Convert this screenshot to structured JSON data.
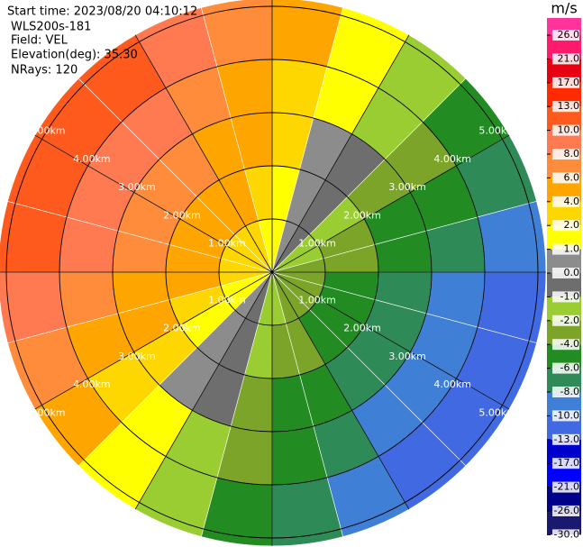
{
  "chart_data": {
    "type": "ppi",
    "header": [
      "Start time: 2023/08/20 04:10:12",
      "WLS200s-181",
      "Field: VEL",
      "Elevation(deg): 35.30",
      "NRays: 120"
    ],
    "azimuths": [
      7.5,
      22.5,
      37.5,
      52.5,
      67.5,
      82.5,
      97.5,
      112.5,
      127.5,
      142.5,
      157.5,
      172.5,
      187.5,
      202.5,
      217.5,
      232.5,
      247.5,
      262.5,
      277.5,
      292.5,
      307.5,
      322.5,
      337.5,
      352.5
    ],
    "range_bins_km": [
      0,
      1,
      2,
      3,
      4,
      5.15
    ],
    "values": [
      [
        1.1,
        1.9,
        2.7,
        3.4,
        4.2
      ],
      [
        0.4,
        0.7,
        0.9,
        1.2,
        1.4
      ],
      [
        -0.4,
        -0.7,
        -0.9,
        -1.2,
        -1.4
      ],
      [
        -1.1,
        -1.9,
        -2.7,
        -3.4,
        -4.2
      ],
      [
        -1.8,
        -3.0,
        -4.3,
        -5.5,
        -6.7
      ],
      [
        -2.4,
        -4.0,
        -5.6,
        -7.1,
        -8.7
      ],
      [
        -2.8,
        -4.6,
        -6.5,
        -8.3,
        -10.2
      ],
      [
        -3.0,
        -5.0,
        -6.9,
        -8.9,
        -10.9
      ],
      [
        -3.0,
        -5.0,
        -6.9,
        -8.9,
        -10.9
      ],
      [
        -2.8,
        -4.6,
        -6.5,
        -8.3,
        -10.2
      ],
      [
        -2.4,
        -4.0,
        -5.6,
        -7.1,
        -8.7
      ],
      [
        -1.8,
        -3.0,
        -4.3,
        -5.5,
        -6.7
      ],
      [
        -1.1,
        -1.9,
        -2.7,
        -3.4,
        -4.2
      ],
      [
        -0.4,
        -0.7,
        -0.9,
        -1.2,
        -1.4
      ],
      [
        0.4,
        0.7,
        0.9,
        1.2,
        1.4
      ],
      [
        1.1,
        1.9,
        2.7,
        3.4,
        4.2
      ],
      [
        1.8,
        3.0,
        4.3,
        5.5,
        6.7
      ],
      [
        2.4,
        4.0,
        5.6,
        7.1,
        8.7
      ],
      [
        2.8,
        4.6,
        6.5,
        8.3,
        10.2
      ],
      [
        3.0,
        5.0,
        6.9,
        8.9,
        10.9
      ],
      [
        3.0,
        5.0,
        6.9,
        8.9,
        10.9
      ],
      [
        2.8,
        4.6,
        6.5,
        8.3,
        10.2
      ],
      [
        2.4,
        4.0,
        5.6,
        7.1,
        8.7
      ],
      [
        1.8,
        3.0,
        4.3,
        5.5,
        6.7
      ]
    ],
    "rticks": [
      {
        "value": 1,
        "label": "1.00km"
      },
      {
        "value": 2,
        "label": "2.00km"
      },
      {
        "value": 3,
        "label": "3.00km"
      },
      {
        "value": 4,
        "label": "4.00km"
      },
      {
        "value": 5,
        "label": "5.00km"
      }
    ],
    "colorbar_title": "m/s",
    "colorbar_ticks": [
      {
        "value": 26,
        "label": "26.0"
      },
      {
        "value": 21,
        "label": "21.0"
      },
      {
        "value": 17,
        "label": "17.0"
      },
      {
        "value": 13,
        "label": "13.0"
      },
      {
        "value": 10,
        "label": "10.0"
      },
      {
        "value": 8,
        "label": "8.0"
      },
      {
        "value": 6,
        "label": "6.0"
      },
      {
        "value": 4,
        "label": "4.0"
      },
      {
        "value": 2,
        "label": "2.0"
      },
      {
        "value": 1,
        "label": "1.0"
      },
      {
        "value": 0,
        "label": "0.0"
      },
      {
        "value": -1,
        "label": "-1.0"
      },
      {
        "value": -2,
        "label": "-2.0"
      },
      {
        "value": -4,
        "label": "-4.0"
      },
      {
        "value": -6,
        "label": "-6.0"
      },
      {
        "value": -8,
        "label": "-8.0"
      },
      {
        "value": -10,
        "label": "-10.0"
      },
      {
        "value": -13,
        "label": "-13.0"
      },
      {
        "value": -17,
        "label": "-17.0"
      },
      {
        "value": -21,
        "label": "-21.0"
      },
      {
        "value": -26,
        "label": "-26.0"
      },
      {
        "value": -30,
        "label": "-30.0"
      }
    ],
    "colors": [
      "#ff3399",
      "#ff1a6e",
      "#e60012",
      "#ff2a00",
      "#ff5a1e",
      "#ff7a50",
      "#ff8c3a",
      "#ffa500",
      "#ffd700",
      "#ffff00",
      "#8c8c8c",
      "#6e6e6e",
      "#9acd32",
      "#7ba428",
      "#228b22",
      "#2e8b57",
      "#3f7fd6",
      "#4169e1",
      "#0000cd",
      "#0000ff",
      "#00008b",
      "#191970"
    ]
  }
}
